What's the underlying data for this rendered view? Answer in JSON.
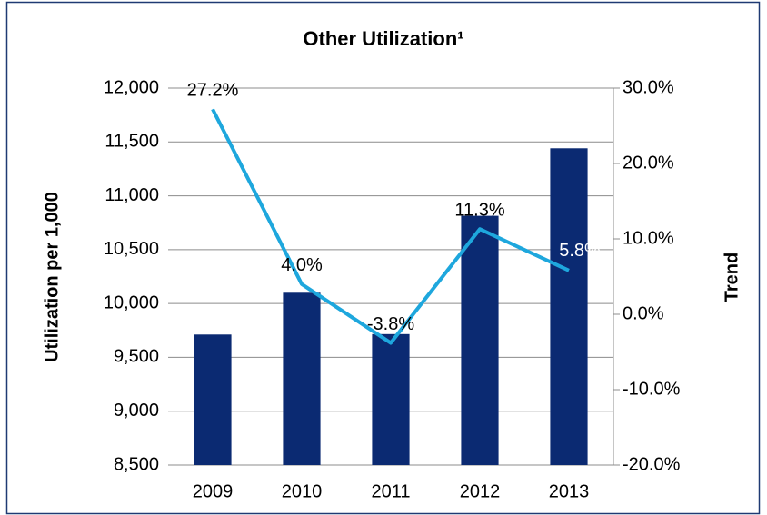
{
  "chart_data": {
    "type": "bar_line",
    "title": "Other Utilization¹",
    "ylabel": "Utilization per 1,000",
    "y2label": "Trend",
    "categories": [
      "2009",
      "2010",
      "2011",
      "2012",
      "2013"
    ],
    "series": [
      {
        "name": "Utilization per 1,000",
        "type": "bar",
        "color": "#0b2a72",
        "values": [
          9712,
          10100,
          9716,
          10814,
          11441
        ]
      },
      {
        "name": "Trend",
        "type": "line",
        "axis": "y2",
        "color": "#1ea7dd",
        "values": [
          27.2,
          4.0,
          -3.8,
          11.3,
          5.8
        ],
        "value_labels": [
          "27.2%",
          "4.0%",
          "-3.8%",
          "11.3%",
          "5.8%"
        ]
      }
    ],
    "ylim": [
      8500,
      12000
    ],
    "yticks": [
      {
        "value": 8500,
        "label": "8,500"
      },
      {
        "value": 9000,
        "label": "9,000"
      },
      {
        "value": 9500,
        "label": "9,500"
      },
      {
        "value": 10000,
        "label": "10,000"
      },
      {
        "value": 10500,
        "label": "10,500"
      },
      {
        "value": 11000,
        "label": "11,000"
      },
      {
        "value": 11500,
        "label": "11,500"
      },
      {
        "value": 12000,
        "label": "12,000"
      }
    ],
    "y2lim": [
      -20,
      30
    ],
    "y2ticks": [
      {
        "value": -20,
        "label": "-20.0%"
      },
      {
        "value": -10,
        "label": "-10.0%"
      },
      {
        "value": 0,
        "label": "0.0%"
      },
      {
        "value": 10,
        "label": "10.0%"
      },
      {
        "value": 20,
        "label": "20.0%"
      },
      {
        "value": 30,
        "label": "30.0%"
      }
    ],
    "grid": true
  }
}
